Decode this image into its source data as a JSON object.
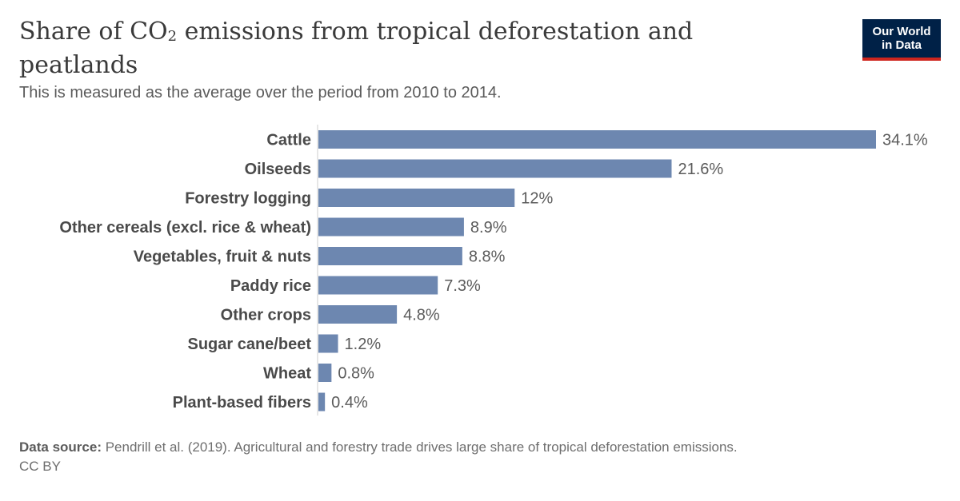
{
  "header": {
    "title_main": "Share of CO",
    "title_sub": "2",
    "title_rest": " emissions from tropical deforestation and peatlands",
    "subtitle": "This is measured as the average over the period from 2010 to 2014.",
    "logo_line1": "Our World",
    "logo_line2": "in Data"
  },
  "chart_data": {
    "type": "bar",
    "orientation": "horizontal",
    "categories": [
      "Cattle",
      "Oilseeds",
      "Forestry logging",
      "Other cereals (excl. rice & wheat)",
      "Vegetables, fruit & nuts",
      "Paddy rice",
      "Other crops",
      "Sugar cane/beet",
      "Wheat",
      "Plant-based fibers"
    ],
    "values": [
      34.1,
      21.6,
      12,
      8.9,
      8.8,
      7.3,
      4.8,
      1.2,
      0.8,
      0.4
    ],
    "value_labels": [
      "34.1%",
      "21.6%",
      "12%",
      "8.9%",
      "8.8%",
      "7.3%",
      "4.8%",
      "1.2%",
      "0.8%",
      "0.4%"
    ],
    "bar_color": "#6d87b0",
    "xlim": [
      0,
      34.1
    ]
  },
  "footer": {
    "source_label": "Data source:",
    "source_text": " Pendrill et al. (2019). Agricultural and forestry trade drives large share of tropical deforestation emissions.",
    "license": "CC BY"
  }
}
